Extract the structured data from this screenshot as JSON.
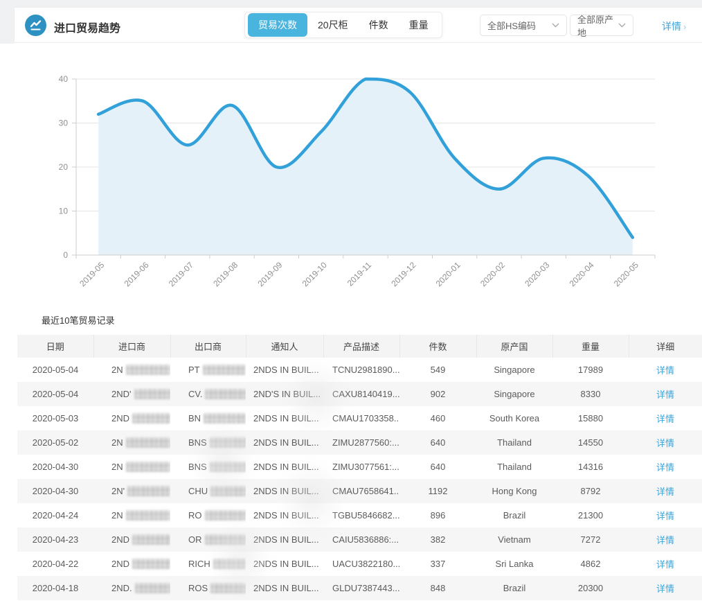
{
  "header": {
    "title": "进口贸易趋势",
    "tabs": [
      {
        "label": "贸易次数",
        "active": true
      },
      {
        "label": "20尺柜",
        "active": false
      },
      {
        "label": "件数",
        "active": false
      },
      {
        "label": "重量",
        "active": false
      }
    ],
    "filters": [
      {
        "label": "全部HS编码"
      },
      {
        "label": "全部原产地"
      }
    ],
    "detail_link": "详情",
    "detail_arrow": "›",
    "accent_color": "#49b5de",
    "icon_color": "#2d91c2"
  },
  "chart_data": {
    "type": "area",
    "title": "",
    "xlabel": "",
    "ylabel": "",
    "x": [
      "2019-05",
      "2019-06",
      "2019-07",
      "2019-08",
      "2019-09",
      "2019-10",
      "2019-11",
      "2019-12",
      "2020-01",
      "2020-02",
      "2020-03",
      "2020-04",
      "2020-05"
    ],
    "series": [
      {
        "name": "贸易次数",
        "values": [
          32,
          35,
          25,
          34,
          20,
          28,
          40,
          37,
          22,
          15,
          22,
          18,
          4
        ]
      }
    ],
    "ylim": [
      0,
      40
    ],
    "yticks": [
      0,
      10,
      20,
      30,
      40
    ],
    "grid": true,
    "smooth": true,
    "legend_position": "none",
    "line_color": "#32a1d9",
    "fill_color": "#e4f1f9",
    "axis_color": "#cccccc",
    "label_color": "#8f8f8f"
  },
  "table": {
    "title": "最近10笔贸易记录",
    "columns": [
      "日期",
      "进口商",
      "出口商",
      "通知人",
      "产品描述",
      "件数",
      "原产国",
      "重量",
      "详细"
    ],
    "rows": [
      {
        "date": "2020-05-04",
        "importer": "2N",
        "exporter": "PT",
        "notify": "2NDS IN BUIL...",
        "product": "TCNU2981890...",
        "pieces": "549",
        "origin": "Singapore",
        "weight": "17989",
        "detail": "详情"
      },
      {
        "date": "2020-05-04",
        "importer": "2ND'",
        "exporter": "CV.",
        "notify": "2ND'S IN BUIL...",
        "product": "CAXU8140419...",
        "pieces": "902",
        "origin": "Singapore",
        "weight": "8330",
        "detail": "详情"
      },
      {
        "date": "2020-05-03",
        "importer": "2ND",
        "exporter": "BN",
        "notify": "2NDS IN BUIL...",
        "product": "CMAU1703358...",
        "pieces": "460",
        "origin": "South Korea",
        "weight": "15880",
        "detail": "详情"
      },
      {
        "date": "2020-05-02",
        "importer": "2N",
        "exporter": "BNS",
        "notify": "2NDS IN BUIL...",
        "product": "ZIMU2877560:...",
        "pieces": "640",
        "origin": "Thailand",
        "weight": "14550",
        "detail": "详情"
      },
      {
        "date": "2020-04-30",
        "importer": "2N",
        "exporter": "BNS",
        "notify": "2NDS IN BUIL...",
        "product": "ZIMU3077561:...",
        "pieces": "640",
        "origin": "Thailand",
        "weight": "14316",
        "detail": "详情"
      },
      {
        "date": "2020-04-30",
        "importer": "2N'",
        "exporter": "CHU",
        "notify": "2NDS IN BUIL...",
        "product": "CMAU7658641...",
        "pieces": "1192",
        "origin": "Hong Kong",
        "weight": "8792",
        "detail": "详情"
      },
      {
        "date": "2020-04-24",
        "importer": "2N",
        "exporter": "RO",
        "notify": "2NDS IN BUIL...",
        "product": "TGBU5846682...",
        "pieces": "896",
        "origin": "Brazil",
        "weight": "21300",
        "detail": "详情"
      },
      {
        "date": "2020-04-23",
        "importer": "2ND",
        "exporter": "OR",
        "notify": "2NDS IN BUIL...",
        "product": "CAIU5836886:...",
        "pieces": "382",
        "origin": "Vietnam",
        "weight": "7272",
        "detail": "详情"
      },
      {
        "date": "2020-04-22",
        "importer": "2ND",
        "exporter": "RICH",
        "notify": "2NDS IN BUIL...",
        "product": "UACU3822180...",
        "pieces": "337",
        "origin": "Sri Lanka",
        "weight": "4862",
        "detail": "详情"
      },
      {
        "date": "2020-04-18",
        "importer": "2ND.",
        "exporter": "ROS",
        "notify": "2NDS IN BUIL...",
        "product": "GLDU7387443...",
        "pieces": "848",
        "origin": "Brazil",
        "weight": "20300",
        "detail": "详情"
      }
    ]
  }
}
